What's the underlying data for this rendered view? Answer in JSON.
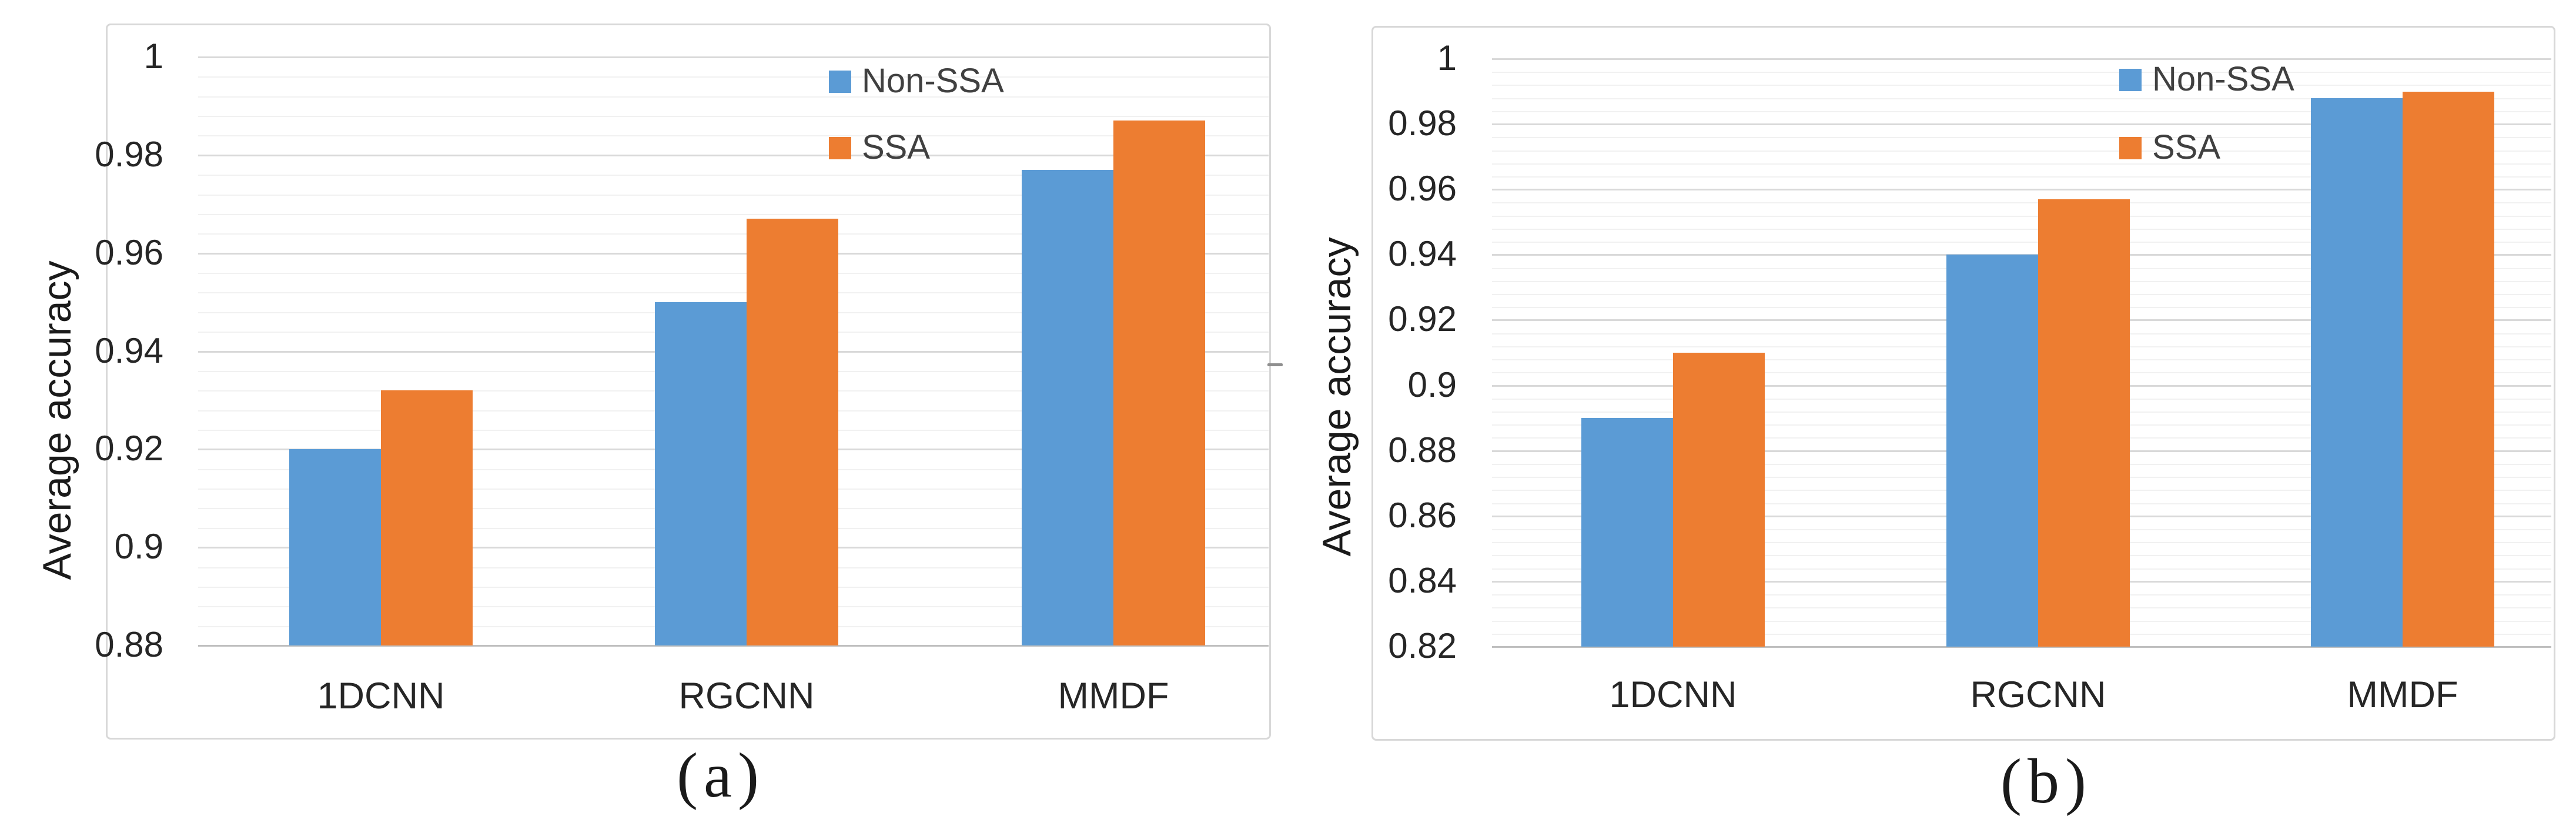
{
  "chart_data": [
    {
      "type": "bar",
      "panel": "a",
      "caption": "(a)",
      "title": "",
      "xlabel": "",
      "ylabel": "Average accuracy",
      "categories": [
        "1DCNN",
        "RGCNN",
        "MMDF"
      ],
      "series": [
        {
          "name": "Non-SSA",
          "color": "#5B9BD5",
          "values": [
            0.92,
            0.95,
            0.977
          ]
        },
        {
          "name": "SSA",
          "color": "#ED7D31",
          "values": [
            0.932,
            0.967,
            0.987
          ]
        }
      ],
      "ylim": [
        0.88,
        1.0
      ],
      "y_major_step": 0.02,
      "y_minor_step": 0.004,
      "y_tick_labels": [
        "1",
        "0.98",
        "0.96",
        "0.94",
        "0.92",
        "0.9",
        "0.88"
      ],
      "grid": true,
      "legend_position": "inside-top-center"
    },
    {
      "type": "bar",
      "panel": "b",
      "caption": "(b)",
      "title": "",
      "xlabel": "",
      "ylabel": "Average accuracy",
      "categories": [
        "1DCNN",
        "RGCNN",
        "MMDF"
      ],
      "series": [
        {
          "name": "Non-SSA",
          "color": "#5B9BD5",
          "values": [
            0.89,
            0.94,
            0.988
          ]
        },
        {
          "name": "SSA",
          "color": "#ED7D31",
          "values": [
            0.91,
            0.957,
            0.99
          ]
        }
      ],
      "ylim": [
        0.82,
        1.0
      ],
      "y_major_step": 0.02,
      "y_minor_step": 0.004,
      "y_tick_labels": [
        "1",
        "0.98",
        "0.96",
        "0.94",
        "0.92",
        "0.9",
        "0.88",
        "0.86",
        "0.84",
        "0.82"
      ],
      "grid": true,
      "legend_position": "inside-top-center"
    }
  ],
  "colors": {
    "series_blue": "#5B9BD5",
    "series_orange": "#ED7D31",
    "major_gridline": "#d9d9d9",
    "minor_gridline": "#f1f1f1",
    "axis_line": "#bfbfbf",
    "tick_text": "#262626",
    "legend_text": "#404040"
  }
}
